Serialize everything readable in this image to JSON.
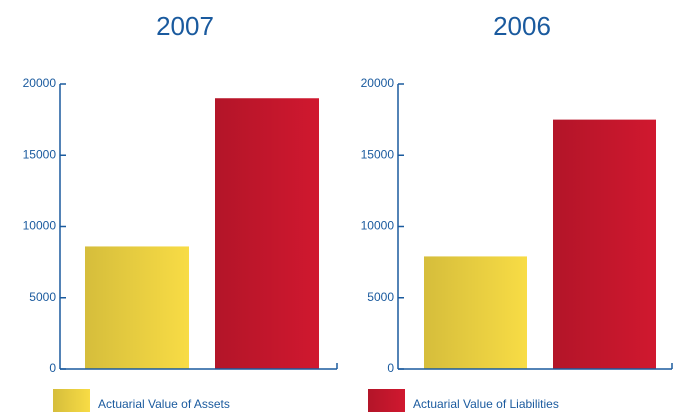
{
  "chart_data": [
    {
      "type": "bar",
      "title": "2007",
      "values": [
        8600,
        19000
      ],
      "ylim": [
        0,
        20000
      ],
      "yticks": [
        0,
        5000,
        10000,
        15000,
        20000
      ]
    },
    {
      "type": "bar",
      "title": "2006",
      "values": [
        7900,
        17500
      ],
      "ylim": [
        0,
        20000
      ],
      "yticks": [
        0,
        5000,
        10000,
        15000,
        20000
      ]
    }
  ],
  "legend": [
    {
      "name": "Actuarial Value of Assets",
      "color": "#f8dc45"
    },
    {
      "name": "Actuarial Value of Liabilities",
      "color": "#d0182f"
    }
  ]
}
